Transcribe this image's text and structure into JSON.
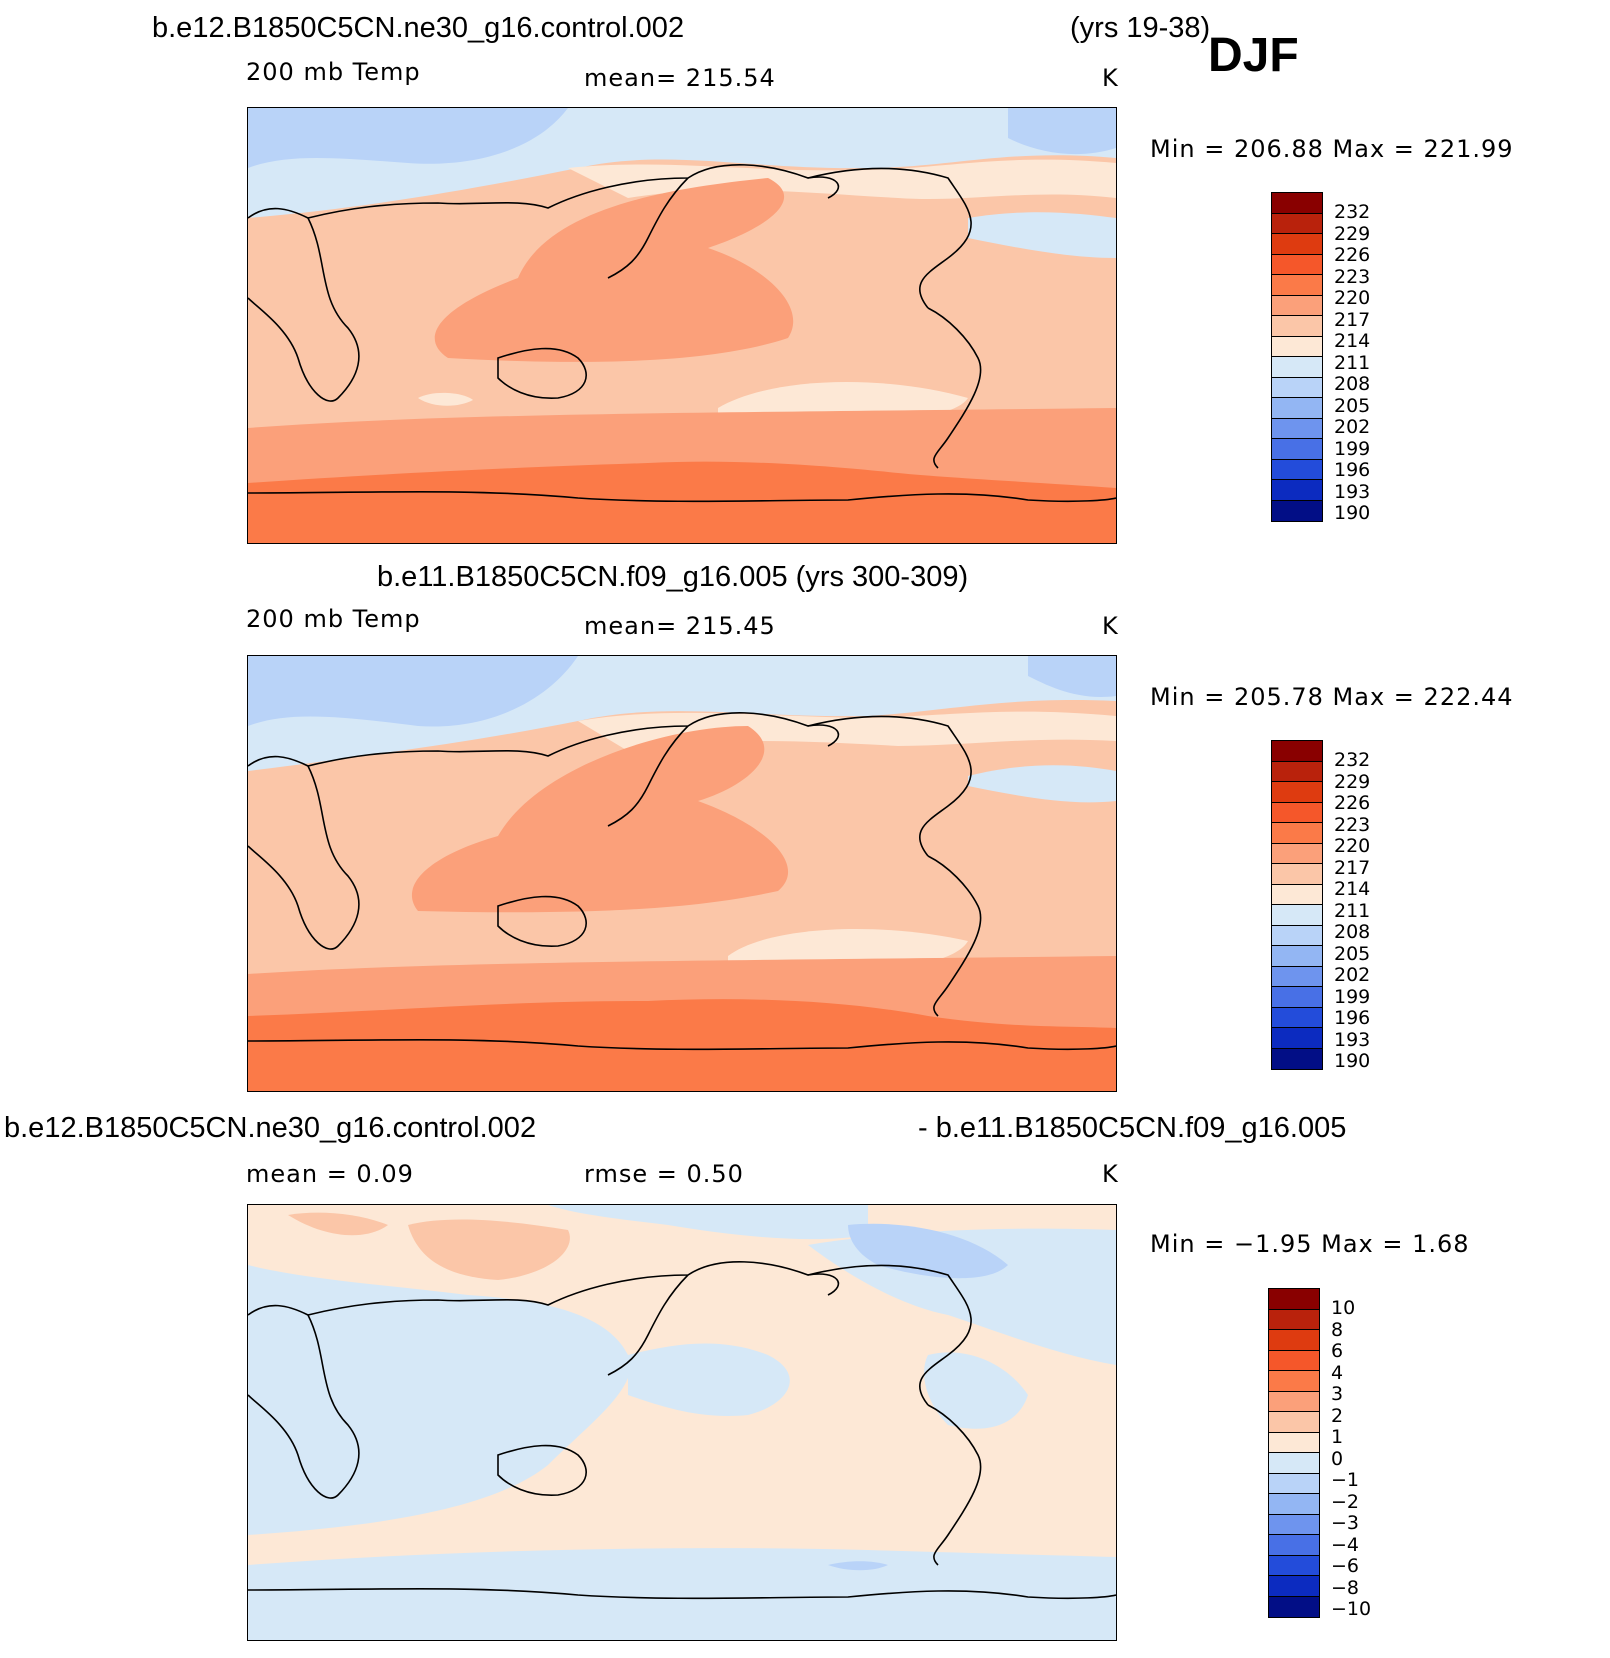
{
  "season": "DJF",
  "colors": {
    "abs_scale": [
      "#890000",
      "#b9220c",
      "#de3b10",
      "#f5572a",
      "#fb7a48",
      "#fba07a",
      "#fbc6a8",
      "#fde8d6",
      "#d6e8f7",
      "#b9d3f8",
      "#93b6f3",
      "#6e94ee",
      "#4870e6",
      "#234cda",
      "#0c2bc0",
      "#020e86"
    ],
    "diff_scale": [
      "#890000",
      "#b9220c",
      "#de3b10",
      "#f5572a",
      "#fb7a48",
      "#fba07a",
      "#fbc6a8",
      "#fde8d6",
      "#d6e8f7",
      "#b9d3f8",
      "#93b6f3",
      "#6e94ee",
      "#4870e6",
      "#234cda",
      "#0c2bc0",
      "#020e86"
    ]
  },
  "panels": [
    {
      "title_left": "b.e12.B1850C5CN.ne30_g16.control.002",
      "title_right": "(yrs 19-38)",
      "field": "200 mb Temp",
      "stat": "mean=  215.54",
      "units": "K",
      "minmax": "Min  =  206.88  Max  =  221.99",
      "levels": [
        "232",
        "229",
        "226",
        "223",
        "220",
        "217",
        "214",
        "211",
        "208",
        "205",
        "202",
        "199",
        "196",
        "193",
        "190"
      ]
    },
    {
      "title_center": "b.e11.B1850C5CN.f09_g16.005 (yrs 300-309)",
      "field": "200 mb Temp",
      "stat": "mean=  215.45",
      "units": "K",
      "minmax": "Min  =  205.78  Max  =  222.44",
      "levels": [
        "232",
        "229",
        "226",
        "223",
        "220",
        "217",
        "214",
        "211",
        "208",
        "205",
        "202",
        "199",
        "196",
        "193",
        "190"
      ]
    },
    {
      "title_left": "b.e12.B1850C5CN.ne30_g16.control.002",
      "title_right": "- b.e11.B1850C5CN.f09_g16.005",
      "stat_left": "mean  =     0.09",
      "stat_mid": "rmse  =     0.50",
      "units": "K",
      "minmax": "Min  =   −1.95  Max  =     1.68",
      "levels": [
        "10",
        "8",
        "6",
        "4",
        "3",
        "2",
        "1",
        "0",
        "−1",
        "−2",
        "−3",
        "−4",
        "−6",
        "−8",
        "−10"
      ]
    }
  ]
}
